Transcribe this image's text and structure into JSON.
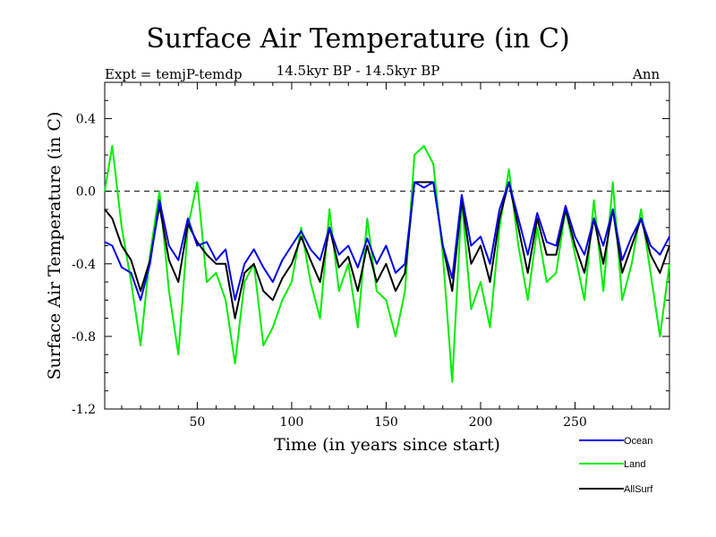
{
  "header": {
    "title": "Surface Air Temperature (in C)",
    "experiment": "Expt = temjP-temdp",
    "period": "14.5kyr BP - 14.5kyr BP",
    "season": "Ann"
  },
  "chart_data": {
    "type": "line",
    "title": "Surface Air Temperature (in C)",
    "xlabel": "Time (in years since start)",
    "ylabel": "Surface Air Temperature (in C)",
    "xlim": [
      1,
      300
    ],
    "ylim": [
      -1.2,
      0.6
    ],
    "xticks": [
      50,
      100,
      150,
      200,
      250
    ],
    "yticks": [
      -1.2,
      -0.8,
      -0.4,
      0.0,
      0.4
    ],
    "ytick_labels": [
      "-1.2",
      "-0.8",
      "-0.4",
      "0.0",
      "0.4"
    ],
    "reference_line": 0.0,
    "legend_position": "bottom-right",
    "x": [
      1,
      5,
      10,
      15,
      20,
      25,
      30,
      35,
      40,
      45,
      50,
      55,
      60,
      65,
      70,
      75,
      80,
      85,
      90,
      95,
      100,
      105,
      110,
      115,
      120,
      125,
      130,
      135,
      140,
      145,
      150,
      155,
      160,
      165,
      170,
      175,
      180,
      185,
      190,
      195,
      200,
      205,
      210,
      215,
      220,
      225,
      230,
      235,
      240,
      245,
      250,
      255,
      260,
      265,
      270,
      275,
      280,
      285,
      290,
      295,
      300
    ],
    "series": [
      {
        "name": "Ocean",
        "color": "#0000ee",
        "values": [
          -0.28,
          -0.3,
          -0.42,
          -0.45,
          -0.6,
          -0.4,
          -0.05,
          -0.3,
          -0.38,
          -0.15,
          -0.3,
          -0.28,
          -0.38,
          -0.32,
          -0.6,
          -0.4,
          -0.32,
          -0.42,
          -0.5,
          -0.38,
          -0.3,
          -0.22,
          -0.32,
          -0.38,
          -0.2,
          -0.35,
          -0.3,
          -0.42,
          -0.26,
          -0.4,
          -0.3,
          -0.45,
          -0.4,
          0.05,
          0.02,
          0.05,
          -0.3,
          -0.48,
          -0.02,
          -0.3,
          -0.25,
          -0.4,
          -0.1,
          0.05,
          -0.15,
          -0.35,
          -0.12,
          -0.28,
          -0.3,
          -0.08,
          -0.25,
          -0.35,
          -0.15,
          -0.3,
          -0.1,
          -0.38,
          -0.25,
          -0.15,
          -0.3,
          -0.35,
          -0.25
        ]
      },
      {
        "name": "Land",
        "color": "#00ee00",
        "values": [
          0.0,
          0.25,
          -0.2,
          -0.5,
          -0.85,
          -0.35,
          0.0,
          -0.55,
          -0.9,
          -0.2,
          0.05,
          -0.5,
          -0.45,
          -0.6,
          -0.95,
          -0.5,
          -0.4,
          -0.85,
          -0.75,
          -0.6,
          -0.5,
          -0.2,
          -0.5,
          -0.7,
          -0.1,
          -0.55,
          -0.4,
          -0.75,
          -0.15,
          -0.55,
          -0.6,
          -0.8,
          -0.55,
          0.2,
          0.25,
          0.15,
          -0.35,
          -1.05,
          -0.05,
          -0.65,
          -0.5,
          -0.75,
          -0.2,
          0.12,
          -0.3,
          -0.6,
          -0.2,
          -0.5,
          -0.45,
          -0.1,
          -0.35,
          -0.6,
          -0.05,
          -0.55,
          0.05,
          -0.6,
          -0.4,
          -0.1,
          -0.45,
          -0.8,
          -0.4
        ]
      },
      {
        "name": "AllSurf",
        "color": "#000000",
        "values": [
          -0.1,
          -0.15,
          -0.3,
          -0.38,
          -0.55,
          -0.38,
          -0.08,
          -0.38,
          -0.5,
          -0.18,
          -0.28,
          -0.35,
          -0.4,
          -0.4,
          -0.7,
          -0.45,
          -0.4,
          -0.55,
          -0.6,
          -0.48,
          -0.4,
          -0.25,
          -0.38,
          -0.5,
          -0.2,
          -0.42,
          -0.36,
          -0.55,
          -0.3,
          -0.5,
          -0.4,
          -0.55,
          -0.45,
          0.05,
          0.05,
          0.05,
          -0.3,
          -0.55,
          -0.05,
          -0.4,
          -0.3,
          -0.5,
          -0.15,
          0.05,
          -0.2,
          -0.45,
          -0.15,
          -0.35,
          -0.35,
          -0.1,
          -0.3,
          -0.45,
          -0.15,
          -0.4,
          -0.1,
          -0.45,
          -0.3,
          -0.15,
          -0.35,
          -0.45,
          -0.3
        ]
      }
    ]
  }
}
